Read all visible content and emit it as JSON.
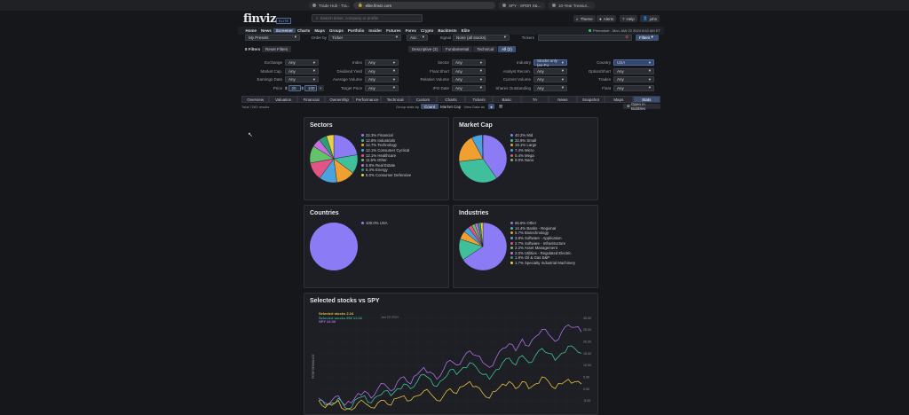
{
  "browser": {
    "tabs": [
      {
        "label": "Trade Hub - Tra...",
        "x": 348,
        "w": 46
      },
      {
        "label": "SPY - SPDR S&...",
        "x": 562,
        "w": 52
      },
      {
        "label": "10-Year Treasur...",
        "x": 618,
        "w": 52
      }
    ],
    "url": "elite.finviz.com"
  },
  "header": {
    "logo": "finviz",
    "badge": "ELITE",
    "search_placeholder": "Search ticker, company or profile",
    "theme": "Theme",
    "alerts": "Alerts",
    "help": "Help",
    "user": "john"
  },
  "nav": {
    "items": [
      "Home",
      "News",
      "Screener",
      "Charts",
      "Maps",
      "Groups",
      "Portfolio",
      "Insider",
      "Futures",
      "Forex",
      "Crypto",
      "Backtests",
      "Elite"
    ],
    "active": "Screener",
    "status": "Premarket - Mon JAN 22 2024 8:52 AM ET"
  },
  "controls": {
    "presets": "My Presets",
    "order_by_label": "Order by",
    "order_by": "Ticker",
    "order_dir": "Asc",
    "signal_label": "Signal",
    "signal": "None (all stocks)",
    "tickers_label": "Tickers",
    "filters_btn": "Filters",
    "filter_count": "8 Filters",
    "reset": "Reset Filters",
    "filter_tabs": [
      "Descriptive (3)",
      "Fundamental",
      "Technical",
      "All (2)"
    ],
    "filter_tabs_active": "All (2)"
  },
  "filters": [
    [
      {
        "label": "Exchange",
        "value": "Any"
      },
      {
        "label": "Index",
        "value": "Any"
      },
      {
        "label": "Sector",
        "value": "Any"
      },
      {
        "label": "Industry",
        "value": "Stocks only (ex-Fu",
        "hl": true
      },
      {
        "label": "Country",
        "value": "USA",
        "hl": true
      }
    ],
    [
      {
        "label": "Market Cap.",
        "value": "Any"
      },
      {
        "label": "Dividend Yield",
        "value": "Any"
      },
      {
        "label": "Float Short",
        "value": "Any"
      },
      {
        "label": "Analyst Recom.",
        "value": "Any"
      },
      {
        "label": "Option/Short",
        "value": "Any"
      }
    ],
    [
      {
        "label": "Earnings Date",
        "value": "Any"
      },
      {
        "label": "Average Volume",
        "value": "Any"
      },
      {
        "label": "Relative Volume",
        "value": "Any"
      },
      {
        "label": "Current Volume",
        "value": "Any"
      },
      {
        "label": "Trades",
        "value": "Any"
      }
    ],
    [
      {
        "label": "Price",
        "value": ""
      },
      {
        "label": "Target Price",
        "value": "Any"
      },
      {
        "label": "IPO Date",
        "value": "Any"
      },
      {
        "label": "Shares Outstanding",
        "value": "Any"
      },
      {
        "label": "Float",
        "value": "Any"
      }
    ]
  ],
  "price": {
    "currency": "$",
    "min": "20",
    "max": "100"
  },
  "view_tabs": [
    "Overview",
    "Valuation",
    "Financial",
    "Ownership",
    "Performance",
    "Technical",
    "Custom",
    "Charts",
    "Tickers",
    "Basic",
    "TA",
    "News",
    "Snapshot",
    "Maps",
    "Stats"
  ],
  "view_tabs_active": "Stats",
  "subbar": {
    "total": "Total 7263 results",
    "group_label": "Group stats by",
    "group_options": [
      "Count",
      "Market Cap"
    ],
    "group_active": "Count",
    "view_label": "View Data as",
    "open_bubbles": "Open in Bubbles"
  },
  "sectors": {
    "title": "Sectors",
    "items": [
      {
        "label": "22.3%  Financial",
        "pct": 22.3,
        "color": "#8b7cf6"
      },
      {
        "label": "12.8%  Industrials",
        "pct": 12.8,
        "color": "#3fbf9b"
      },
      {
        "label": "12.7%  Technology",
        "pct": 12.7,
        "color": "#f0a030"
      },
      {
        "label": "12.1%  Consumer Cyclical",
        "pct": 12.1,
        "color": "#4aa3df"
      },
      {
        "label": "12.1%  Healthcare",
        "pct": 12.1,
        "color": "#e05585"
      },
      {
        "label": "11.6%  Other",
        "pct": 11.6,
        "color": "#64c26a"
      },
      {
        "label": "5.8%  Real Estate",
        "pct": 5.8,
        "color": "#c86ee0"
      },
      {
        "label": "5.4%  Energy",
        "pct": 5.4,
        "color": "#2d9d78"
      },
      {
        "label": "5.0%  Consumer Defensive",
        "pct": 5.0,
        "color": "#e8d048"
      }
    ]
  },
  "market_cap": {
    "title": "Market Cap",
    "items": [
      {
        "label": "40.2%  Mid",
        "pct": 40.2,
        "color": "#8b7cf6"
      },
      {
        "label": "32.9%  Small",
        "pct": 32.9,
        "color": "#3fbf9b"
      },
      {
        "label": "19.1%  Large",
        "pct": 19.1,
        "color": "#f0a030"
      },
      {
        "label": "7.4%  Micro",
        "pct": 7.4,
        "color": "#4aa3df"
      },
      {
        "label": "0.4%  Mega",
        "pct": 0.4,
        "color": "#e05585"
      },
      {
        "label": "0.0%  Nano",
        "pct": 0.0,
        "color": "#64c26a"
      }
    ]
  },
  "countries": {
    "title": "Countries",
    "items": [
      {
        "label": "100.0%  USA",
        "pct": 100,
        "color": "#8b7cf6"
      }
    ]
  },
  "industries": {
    "title": "Industries",
    "items": [
      {
        "label": "65.6%  Other",
        "pct": 65.6,
        "color": "#8b7cf6"
      },
      {
        "label": "14.4%  Banks - Regional",
        "pct": 14.4,
        "color": "#3fbf9b"
      },
      {
        "label": "5.7%  Biotechnology",
        "pct": 5.7,
        "color": "#f0a030"
      },
      {
        "label": "3.8%  Software - Application",
        "pct": 3.8,
        "color": "#4aa3df"
      },
      {
        "label": "2.7%  Software - Infrastructure",
        "pct": 2.7,
        "color": "#e05585"
      },
      {
        "label": "2.2%  Asset Management",
        "pct": 2.2,
        "color": "#64c26a"
      },
      {
        "label": "2.0%  Utilities - Regulated Electric",
        "pct": 2.0,
        "color": "#c86ee0"
      },
      {
        "label": "1.8%  Oil & Gas E&P",
        "pct": 1.8,
        "color": "#2d9d78"
      },
      {
        "label": "1.7%  Specialty Industrial Machinery",
        "pct": 1.7,
        "color": "#e8d048"
      }
    ]
  },
  "perf_chart": {
    "title": "Selected stocks vs SPY",
    "legend": [
      {
        "label": "Selected stocks 2.24",
        "color": "#e8c040"
      },
      {
        "label": "Selected stocks EW 15.02",
        "color": "#3fbf9b"
      },
      {
        "label": "SPY 24.00",
        "color": "#b06ee8"
      }
    ],
    "date": "Jan 22 2024",
    "ylabel": "PERFORMANCE",
    "yticks": [
      "30.00",
      "25.00",
      "20.00",
      "15.00",
      "10.00",
      "5.00",
      "0.00",
      "-5.00"
    ]
  },
  "chart_data": {
    "type": "line",
    "title": "Selected stocks vs SPY",
    "ylabel": "PERFORMANCE",
    "ylim": [
      -10,
      32
    ],
    "series": [
      {
        "name": "SPY 24.00",
        "values": [
          -4,
          -6,
          -5,
          -3,
          -7,
          -6,
          -2,
          -1,
          -4,
          0,
          2,
          -1,
          3,
          5,
          2,
          6,
          9,
          7,
          4,
          8,
          12,
          10,
          13,
          16,
          14,
          11,
          9,
          13,
          17,
          19,
          16,
          21,
          18,
          22,
          25,
          23,
          20,
          24,
          27,
          26,
          24
        ]
      },
      {
        "name": "Selected stocks EW 15.02",
        "values": [
          -5,
          -7,
          -6,
          -4,
          -8,
          -8,
          -4,
          -3,
          -6,
          -3,
          -1,
          -3,
          0,
          2,
          0,
          3,
          6,
          4,
          1,
          4,
          8,
          6,
          9,
          11,
          9,
          6,
          4,
          8,
          11,
          13,
          10,
          14,
          11,
          14,
          17,
          15,
          12,
          15,
          18,
          17,
          15
        ]
      },
      {
        "name": "Selected stocks 2.24",
        "values": [
          -5,
          -8,
          -7,
          -5,
          -9,
          -9,
          -6,
          -6,
          -8,
          -6,
          -5,
          -7,
          -4,
          -3,
          -5,
          -3,
          -1,
          -2,
          -5,
          -3,
          0,
          -2,
          1,
          3,
          1,
          -2,
          -4,
          -1,
          2,
          3,
          0,
          3,
          0,
          2,
          5,
          3,
          0,
          2,
          4,
          3,
          2
        ]
      }
    ]
  }
}
